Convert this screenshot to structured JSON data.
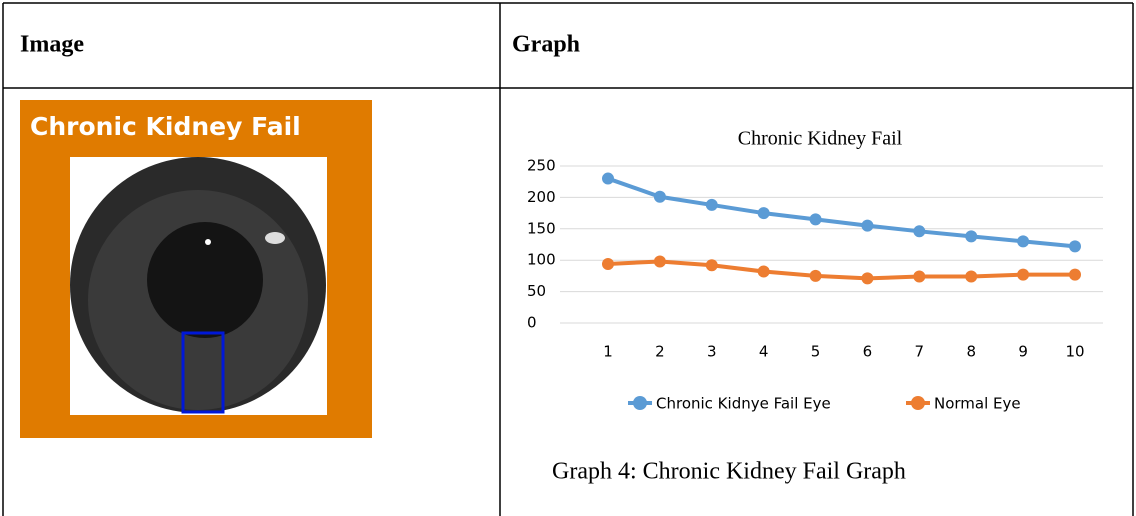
{
  "table": {
    "headers": [
      "Image",
      "Graph"
    ]
  },
  "image": {
    "label": "Chronic Kidney Fail"
  },
  "chart_data": {
    "type": "line",
    "title": "Chronic Kidney Fail",
    "categories": [
      "1",
      "2",
      "3",
      "4",
      "5",
      "6",
      "7",
      "8",
      "9",
      "10"
    ],
    "series": [
      {
        "name": "Chronic Kidnye Fail Eye",
        "color": "#5b9bd5",
        "values": [
          230,
          201,
          188,
          175,
          165,
          155,
          146,
          138,
          130,
          122
        ]
      },
      {
        "name": "Normal Eye",
        "color": "#ed7d31",
        "values": [
          94,
          98,
          92,
          82,
          75,
          71,
          74,
          74,
          77,
          77
        ]
      }
    ],
    "ylim": [
      0,
      250
    ],
    "yticks": [
      0,
      50,
      100,
      150,
      200,
      250
    ],
    "grid": true,
    "legend": "bottom"
  },
  "caption": "Graph 4: Chronic Kidney Fail Graph"
}
